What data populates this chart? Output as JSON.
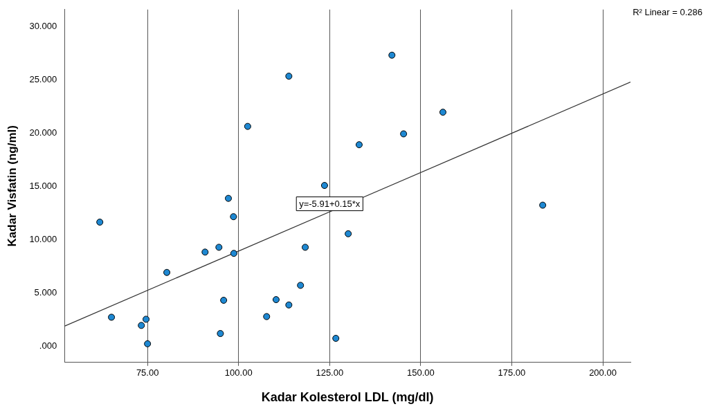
{
  "chart_data": {
    "type": "scatter",
    "xlabel": "Kadar Kolesterol LDL (mg/dl)",
    "ylabel": "Kadar Visfatin (ng/ml)",
    "xlim": [
      52.2,
      207.6
    ],
    "ylim": [
      -1.5,
      31.6
    ],
    "xticks": [
      {
        "value": 75,
        "label": "75.00"
      },
      {
        "value": 100,
        "label": "100.00"
      },
      {
        "value": 125,
        "label": "125.00"
      },
      {
        "value": 150,
        "label": "150.00"
      },
      {
        "value": 175,
        "label": "175.00"
      },
      {
        "value": 200,
        "label": "200.00"
      }
    ],
    "yticks": [
      {
        "value": 0,
        "label": ".000"
      },
      {
        "value": 5,
        "label": "5.000"
      },
      {
        "value": 10,
        "label": "10.000"
      },
      {
        "value": 15,
        "label": "15.000"
      },
      {
        "value": 20,
        "label": "20.000"
      },
      {
        "value": 25,
        "label": "25.000"
      },
      {
        "value": 30,
        "label": "30.000"
      }
    ],
    "grid": "x",
    "marker": "circle",
    "series": [
      {
        "color": "#1e88d2",
        "x": [
          61.9,
          65.1,
          73.3,
          74.6,
          75.0,
          80.3,
          90.8,
          94.6,
          95.0,
          95.9,
          97.2,
          98.6,
          98.7,
          102.5,
          110.3,
          107.7,
          113.8,
          113.8,
          117.0,
          118.3,
          123.6,
          126.7,
          130.1,
          133.1,
          142.1,
          145.3,
          156.1,
          183.5
        ],
        "values": [
          11.66,
          2.74,
          1.97,
          2.55,
          0.25,
          6.94,
          8.85,
          9.3,
          1.21,
          4.33,
          13.89,
          12.17,
          8.73,
          20.64,
          4.39,
          2.8,
          3.89,
          25.35,
          5.73,
          9.3,
          15.1,
          0.76,
          10.57,
          18.92,
          27.32,
          19.94,
          21.97,
          13.25
        ]
      },
      {
        "type": "line",
        "color": "#333333",
        "marker": "none",
        "x": [
          52.2,
          207.6
        ],
        "values": [
          1.9,
          24.8
        ]
      }
    ],
    "annotations": [
      "R² Linear = 0.286",
      {
        "text": "y=-5.91+0.15*x",
        "x": 125,
        "y": 12.6
      }
    ]
  }
}
